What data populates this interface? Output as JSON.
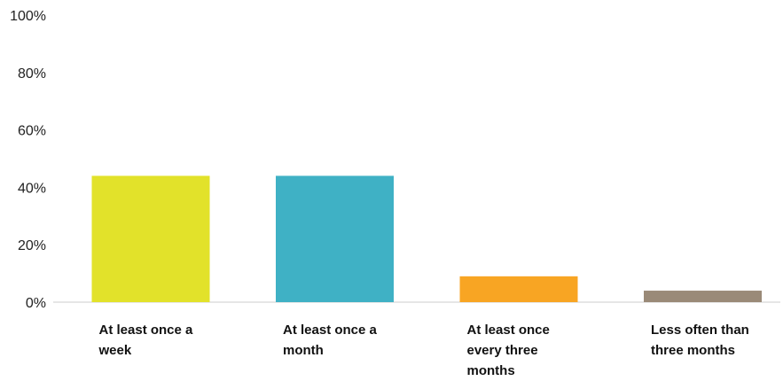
{
  "chart_data": {
    "type": "bar",
    "categories": [
      [
        "At least once a",
        "week"
      ],
      [
        "At least once a",
        "month"
      ],
      [
        "At least once",
        "every three",
        "months"
      ],
      [
        "Less often than",
        "three months"
      ]
    ],
    "values": [
      44,
      44,
      9,
      4
    ],
    "colors": [
      "#e2e22a",
      "#3fb1c5",
      "#f8a523",
      "#9a8a78"
    ],
    "ylim": [
      0,
      100
    ],
    "yticks": [
      0,
      20,
      40,
      60,
      80,
      100
    ],
    "ytick_labels": [
      "0%",
      "20%",
      "40%",
      "60%",
      "80%",
      "100%"
    ],
    "grid": false,
    "title": "",
    "xlabel": "",
    "ylabel": ""
  }
}
